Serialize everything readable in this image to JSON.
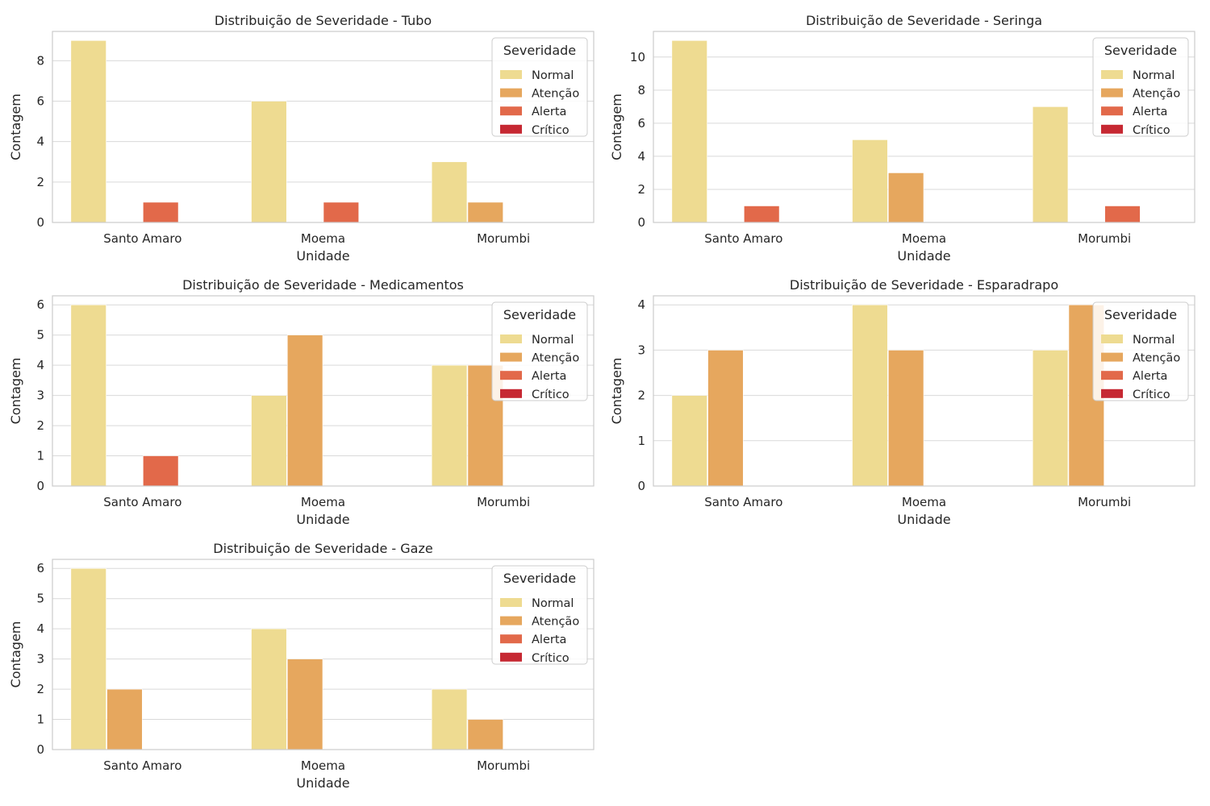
{
  "chart_data": [
    {
      "type": "bar",
      "title": "Distribuição de Severidade - Tubo",
      "xlabel": "Unidade",
      "ylabel": "Contagem",
      "categories": [
        "Santo Amaro",
        "Moema",
        "Morumbi"
      ],
      "ylim": [
        0,
        9.45
      ],
      "yticks": [
        0,
        2,
        4,
        6,
        8
      ],
      "grid": true,
      "legend": {
        "title": "Severidade",
        "placement": "top-right"
      },
      "series": [
        {
          "name": "Normal",
          "values": [
            9,
            6,
            3
          ]
        },
        {
          "name": "Atenção",
          "values": [
            0,
            0,
            1
          ]
        },
        {
          "name": "Alerta",
          "values": [
            1,
            1,
            0
          ]
        },
        {
          "name": "Crítico",
          "values": [
            0,
            0,
            0
          ]
        }
      ]
    },
    {
      "type": "bar",
      "title": "Distribuição de Severidade - Seringa",
      "xlabel": "Unidade",
      "ylabel": "Contagem",
      "categories": [
        "Santo Amaro",
        "Moema",
        "Morumbi"
      ],
      "ylim": [
        0,
        11.55
      ],
      "yticks": [
        0,
        2,
        4,
        6,
        8,
        10
      ],
      "grid": true,
      "legend": {
        "title": "Severidade",
        "placement": "top-right"
      },
      "series": [
        {
          "name": "Normal",
          "values": [
            11,
            5,
            7
          ]
        },
        {
          "name": "Atenção",
          "values": [
            0,
            3,
            0
          ]
        },
        {
          "name": "Alerta",
          "values": [
            1,
            0,
            1
          ]
        },
        {
          "name": "Crítico",
          "values": [
            0,
            0,
            0
          ]
        }
      ]
    },
    {
      "type": "bar",
      "title": "Distribuição de Severidade - Medicamentos",
      "xlabel": "Unidade",
      "ylabel": "Contagem",
      "categories": [
        "Santo Amaro",
        "Moema",
        "Morumbi"
      ],
      "ylim": [
        0,
        6.3
      ],
      "yticks": [
        0,
        1,
        2,
        3,
        4,
        5,
        6
      ],
      "grid": true,
      "legend": {
        "title": "Severidade",
        "placement": "top-right"
      },
      "series": [
        {
          "name": "Normal",
          "values": [
            6,
            3,
            4
          ]
        },
        {
          "name": "Atenção",
          "values": [
            0,
            5,
            4
          ]
        },
        {
          "name": "Alerta",
          "values": [
            1,
            0,
            0
          ]
        },
        {
          "name": "Crítico",
          "values": [
            0,
            0,
            0
          ]
        }
      ]
    },
    {
      "type": "bar",
      "title": "Distribuição de Severidade - Esparadrapo",
      "xlabel": "Unidade",
      "ylabel": "Contagem",
      "categories": [
        "Santo Amaro",
        "Moema",
        "Morumbi"
      ],
      "ylim": [
        0,
        4.2
      ],
      "yticks": [
        0,
        1,
        2,
        3,
        4
      ],
      "grid": true,
      "legend": {
        "title": "Severidade",
        "placement": "top-right"
      },
      "series": [
        {
          "name": "Normal",
          "values": [
            2,
            4,
            3
          ]
        },
        {
          "name": "Atenção",
          "values": [
            3,
            3,
            4
          ]
        },
        {
          "name": "Alerta",
          "values": [
            0,
            0,
            0
          ]
        },
        {
          "name": "Crítico",
          "values": [
            0,
            0,
            0
          ]
        }
      ]
    },
    {
      "type": "bar",
      "title": "Distribuição de Severidade - Gaze",
      "xlabel": "Unidade",
      "ylabel": "Contagem",
      "categories": [
        "Santo Amaro",
        "Moema",
        "Morumbi"
      ],
      "ylim": [
        0,
        6.3
      ],
      "yticks": [
        0,
        1,
        2,
        3,
        4,
        5,
        6
      ],
      "grid": true,
      "legend": {
        "title": "Severidade",
        "placement": "top-right"
      },
      "series": [
        {
          "name": "Normal",
          "values": [
            6,
            4,
            2
          ]
        },
        {
          "name": "Atenção",
          "values": [
            2,
            3,
            1
          ]
        },
        {
          "name": "Alerta",
          "values": [
            0,
            0,
            0
          ]
        },
        {
          "name": "Crítico",
          "values": [
            0,
            0,
            0
          ]
        }
      ]
    }
  ],
  "colors": {
    "Normal": "#eedb91",
    "Atenção": "#e6a75e",
    "Alerta": "#e2694a",
    "Crítico": "#c62832",
    "grid": "#d9d9d9",
    "frame": "#cccccc"
  }
}
